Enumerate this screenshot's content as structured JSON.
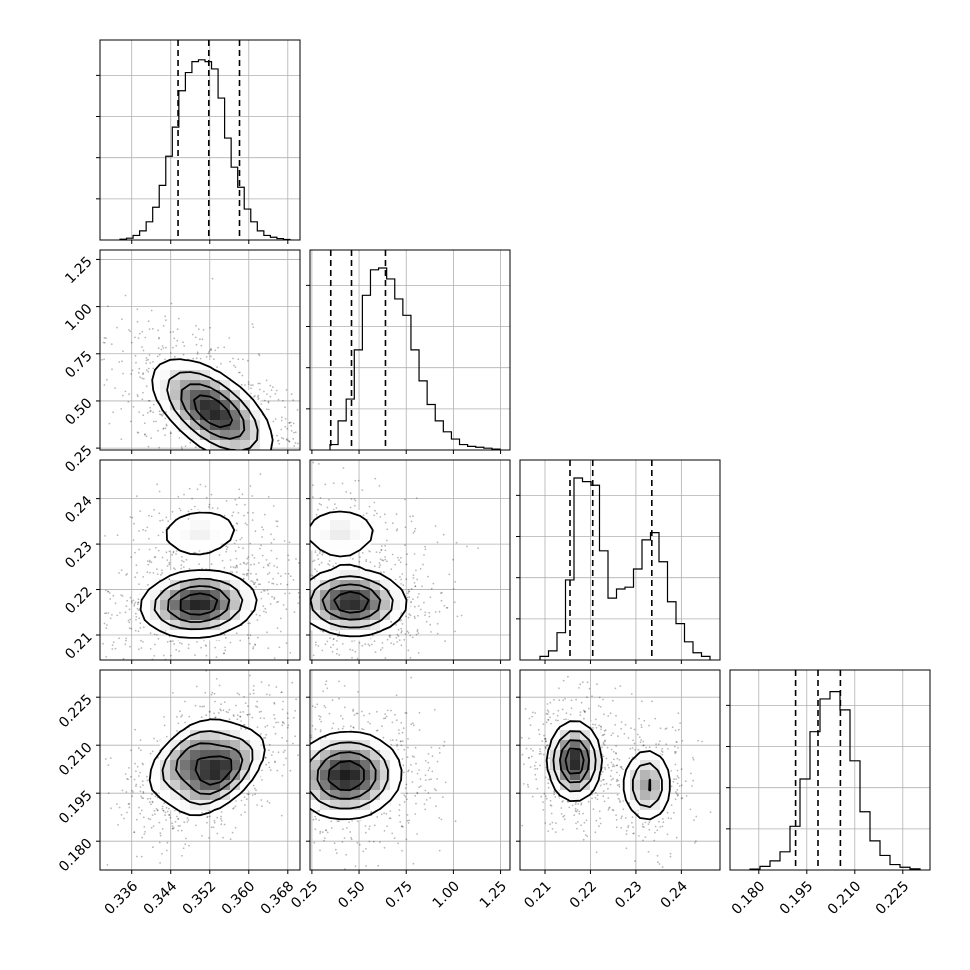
{
  "chart_data": {
    "type": "corner",
    "title": "",
    "n_params": 4,
    "parameters": [
      {
        "label": "",
        "range": [
          0.3295,
          0.3705
        ],
        "ticks": [
          "0.336",
          "0.344",
          "0.352",
          "0.360",
          "0.368"
        ],
        "tick_values": [
          0.336,
          0.344,
          0.352,
          0.36,
          0.368
        ],
        "quantiles": [
          0.3455,
          0.3518,
          0.3581
        ],
        "hist_values": [
          0.4,
          1,
          2.5,
          5,
          10,
          18,
          30,
          46,
          62,
          82,
          92,
          98,
          99,
          98,
          94,
          78,
          56,
          40,
          29,
          17,
          10,
          5,
          2.5,
          1.5,
          0.8,
          0.3
        ]
      },
      {
        "label": "",
        "range": [
          0.24,
          1.3
        ],
        "ticks": [
          "0.25",
          "0.50",
          "0.75",
          "1.00",
          "1.25"
        ],
        "tick_values": [
          0.25,
          0.5,
          0.75,
          1.0,
          1.25
        ],
        "quantiles": [
          0.35,
          0.46,
          0.64
        ],
        "hist_values": [
          3,
          16,
          28,
          55,
          85,
          99,
          100,
          94,
          83,
          74,
          55,
          38,
          25,
          16,
          10,
          6,
          3,
          2,
          1.5,
          1,
          0.5
        ]
      },
      {
        "label": "",
        "range": [
          0.2045,
          0.2485
        ],
        "ticks": [
          "0.21",
          "0.22",
          "0.23",
          "0.24"
        ],
        "tick_values": [
          0.21,
          0.22,
          0.23,
          0.24
        ],
        "quantiles": [
          0.2155,
          0.2205,
          0.2335
        ],
        "hist_values": [
          2,
          5,
          15,
          44,
          100,
          98,
          96,
          60,
          34,
          39,
          40,
          50,
          66,
          70,
          54,
          32,
          20,
          10,
          4,
          2
        ]
      },
      {
        "label": "",
        "range": [
          0.171,
          0.2335
        ],
        "ticks": [
          "0.180",
          "0.195",
          "0.210",
          "0.225"
        ],
        "tick_values": [
          0.18,
          0.195,
          0.21,
          0.225
        ],
        "quantiles": [
          0.1915,
          0.1985,
          0.2055
        ],
        "hist_values": [
          0.5,
          2,
          5,
          10,
          24,
          50,
          76,
          94,
          98,
          88,
          60,
          32,
          16,
          8,
          3,
          1.5,
          0.6
        ]
      }
    ],
    "joint": [
      {
        "row": 1,
        "col": 0,
        "peaks": [
          [
            0.3545,
            0.42,
            1.0
          ],
          [
            0.35,
            0.48,
            0.75
          ]
        ],
        "sx": 0.0055,
        "sy": 0.13,
        "rho": -0.55
      },
      {
        "row": 2,
        "col": 0,
        "peaks": [
          [
            0.351,
            0.2168,
            1.0
          ],
          [
            0.348,
            0.2168,
            0.8
          ],
          [
            0.35,
            0.2325,
            0.45
          ]
        ],
        "sx": 0.0055,
        "sy": 0.0035,
        "rho": 0.1
      },
      {
        "row": 2,
        "col": 1,
        "peaks": [
          [
            0.42,
            0.2175,
            1.0
          ],
          [
            0.52,
            0.2168,
            0.7
          ],
          [
            0.4,
            0.2325,
            0.45
          ]
        ],
        "sx": 0.13,
        "sy": 0.0035,
        "rho": 0.0
      },
      {
        "row": 3,
        "col": 0,
        "peaks": [
          [
            0.354,
            0.2015,
            1.0
          ],
          [
            0.348,
            0.206,
            0.7
          ]
        ],
        "sx": 0.0045,
        "sy": 0.0065,
        "rho": 0.55
      },
      {
        "row": 3,
        "col": 1,
        "peaks": [
          [
            0.4,
            0.2,
            1.0
          ],
          [
            0.5,
            0.2015,
            0.55
          ]
        ],
        "sx": 0.13,
        "sy": 0.0065,
        "rho": 0.0
      },
      {
        "row": 3,
        "col": 2,
        "peaks": [
          [
            0.2165,
            0.205,
            1.0
          ],
          [
            0.2325,
            0.1975,
            0.55
          ]
        ],
        "sx": 0.0028,
        "sy": 0.006,
        "rho": 0.0
      }
    ]
  }
}
